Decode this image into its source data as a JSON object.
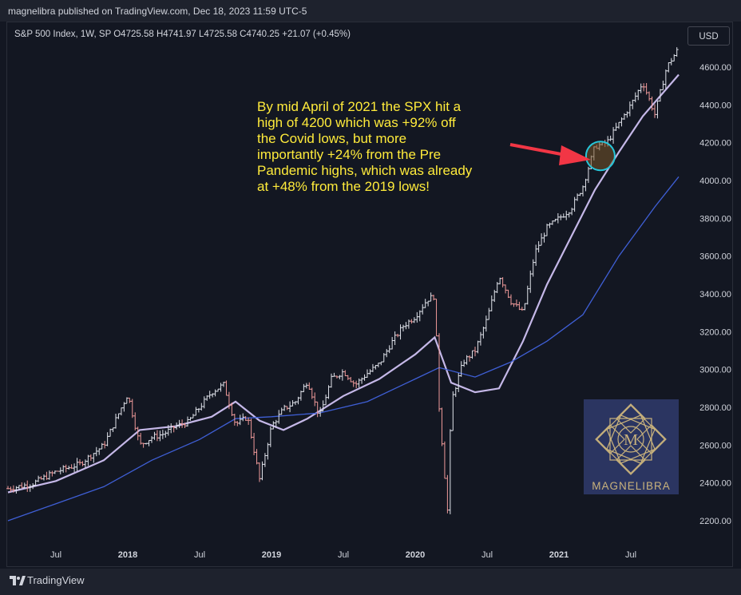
{
  "header": {
    "published_text": "magnelibra published on TradingView.com, Dec 18, 2023 11:59 UTC-5"
  },
  "chart_header": {
    "symbol_line": "S&P 500 Index, 1W, SP  O4725.58  H4741.97  L4725.58  C4740.25  +21.07 (+0.45%)",
    "currency": "USD"
  },
  "annotation": {
    "text": "By mid April of 2021 the SPX hit a\nhigh of 4200 which was +92% off\nthe Covid lows, but more\nimportantly +24% from the Pre\nPandemic highs, which was already\nat +48% from the 2019 lows!",
    "color": "#ffeb3b"
  },
  "logo": {
    "text": "MAGNELIBRA",
    "bg": "#2b3561",
    "gold": "#c9b27c"
  },
  "footer": {
    "brand": "TradingView"
  },
  "colors": {
    "background": "#131722",
    "up_bar": "#e0e3eb",
    "down_bar": "#ef9a9a",
    "sma_fast": "#c5b8e8",
    "sma_slow": "#3f5fd6",
    "arrow": "#f23645",
    "highlight_circle": "#26c6da"
  },
  "chart_data": {
    "type": "line",
    "title": "S&P 500 Index, 1W, SP",
    "ylim": [
      2200,
      4600
    ],
    "y_ticks": [
      "4600.00",
      "4400.00",
      "4200.00",
      "4000.00",
      "3800.00",
      "3600.00",
      "3400.00",
      "3200.00",
      "3000.00",
      "2800.00",
      "2600.00",
      "2400.00",
      "2200.00"
    ],
    "x_ticks": [
      {
        "label": "Jul",
        "date": "2017-07",
        "bold": false
      },
      {
        "label": "2018",
        "date": "2018-01",
        "bold": true
      },
      {
        "label": "Jul",
        "date": "2018-07",
        "bold": false
      },
      {
        "label": "2019",
        "date": "2019-01",
        "bold": true
      },
      {
        "label": "Jul",
        "date": "2019-07",
        "bold": false
      },
      {
        "label": "2020",
        "date": "2020-01",
        "bold": true
      },
      {
        "label": "Jul",
        "date": "2020-07",
        "bold": false
      },
      {
        "label": "2021",
        "date": "2021-01",
        "bold": true
      },
      {
        "label": "Jul",
        "date": "2021-07",
        "bold": false
      }
    ],
    "x_range": [
      "2017-03",
      "2021-11"
    ],
    "price_series": {
      "name": "",
      "points": [
        [
          "2017-03",
          2370
        ],
        [
          "2017-05",
          2395
        ],
        [
          "2017-07",
          2460
        ],
        [
          "2017-09",
          2500
        ],
        [
          "2017-11",
          2600
        ],
        [
          "2018-01",
          2870
        ],
        [
          "2018-02",
          2600
        ],
        [
          "2018-03",
          2640
        ],
        [
          "2018-04",
          2660
        ],
        [
          "2018-05",
          2700
        ],
        [
          "2018-06",
          2720
        ],
        [
          "2018-07",
          2800
        ],
        [
          "2018-08",
          2880
        ],
        [
          "2018-09",
          2920
        ],
        [
          "2018-10",
          2710
        ],
        [
          "2018-11",
          2750
        ],
        [
          "2018-12",
          2420
        ],
        [
          "2019-01",
          2700
        ],
        [
          "2019-02",
          2790
        ],
        [
          "2019-03",
          2830
        ],
        [
          "2019-04",
          2940
        ],
        [
          "2019-05",
          2750
        ],
        [
          "2019-06",
          2950
        ],
        [
          "2019-07",
          2990
        ],
        [
          "2019-08",
          2920
        ],
        [
          "2019-09",
          2980
        ],
        [
          "2019-10",
          3030
        ],
        [
          "2019-11",
          3140
        ],
        [
          "2019-12",
          3230
        ],
        [
          "2020-01",
          3280
        ],
        [
          "2020-02",
          3370
        ],
        [
          "2020-02-20",
          3390
        ],
        [
          "2020-03",
          2800
        ],
        [
          "2020-03-23",
          2230
        ],
        [
          "2020-04",
          2830
        ],
        [
          "2020-05",
          3040
        ],
        [
          "2020-06",
          3100
        ],
        [
          "2020-07",
          3270
        ],
        [
          "2020-08",
          3500
        ],
        [
          "2020-09",
          3360
        ],
        [
          "2020-10",
          3300
        ],
        [
          "2020-11",
          3620
        ],
        [
          "2020-12",
          3750
        ],
        [
          "2021-01",
          3800
        ],
        [
          "2021-02",
          3850
        ],
        [
          "2021-03",
          3970
        ],
        [
          "2021-04",
          4180
        ],
        [
          "2021-05",
          4200
        ],
        [
          "2021-06",
          4300
        ],
        [
          "2021-07",
          4400
        ],
        [
          "2021-08",
          4520
        ],
        [
          "2021-09",
          4350
        ],
        [
          "2021-10",
          4600
        ],
        [
          "2021-11",
          4700
        ]
      ]
    },
    "series": [
      {
        "name": "",
        "color": "#c5b8e8",
        "points": [
          [
            "2017-03",
            2350
          ],
          [
            "2017-07",
            2410
          ],
          [
            "2017-11",
            2520
          ],
          [
            "2018-02",
            2680
          ],
          [
            "2018-05",
            2700
          ],
          [
            "2018-08",
            2750
          ],
          [
            "2018-10",
            2830
          ],
          [
            "2018-12",
            2730
          ],
          [
            "2019-02",
            2680
          ],
          [
            "2019-04",
            2740
          ],
          [
            "2019-07",
            2860
          ],
          [
            "2019-10",
            2950
          ],
          [
            "2020-01",
            3080
          ],
          [
            "2020-02-20",
            3170
          ],
          [
            "2020-04",
            2930
          ],
          [
            "2020-06",
            2880
          ],
          [
            "2020-08",
            2900
          ],
          [
            "2020-10",
            3150
          ],
          [
            "2020-12",
            3450
          ],
          [
            "2021-02",
            3700
          ],
          [
            "2021-04",
            3950
          ],
          [
            "2021-06",
            4150
          ],
          [
            "2021-08",
            4340
          ],
          [
            "2021-11",
            4560
          ]
        ]
      },
      {
        "name": "",
        "color": "#3f5fd6",
        "points": [
          [
            "2017-03",
            2200
          ],
          [
            "2017-07",
            2290
          ],
          [
            "2017-11",
            2380
          ],
          [
            "2018-03",
            2520
          ],
          [
            "2018-07",
            2630
          ],
          [
            "2018-10",
            2740
          ],
          [
            "2019-01",
            2750
          ],
          [
            "2019-05",
            2770
          ],
          [
            "2019-09",
            2830
          ],
          [
            "2020-01",
            2950
          ],
          [
            "2020-03",
            3010
          ],
          [
            "2020-06",
            2960
          ],
          [
            "2020-09",
            3040
          ],
          [
            "2020-12",
            3150
          ],
          [
            "2021-03",
            3290
          ],
          [
            "2021-06",
            3600
          ],
          [
            "2021-09",
            3860
          ],
          [
            "2021-11",
            4020
          ]
        ]
      }
    ],
    "grid": false,
    "legend": "none"
  }
}
